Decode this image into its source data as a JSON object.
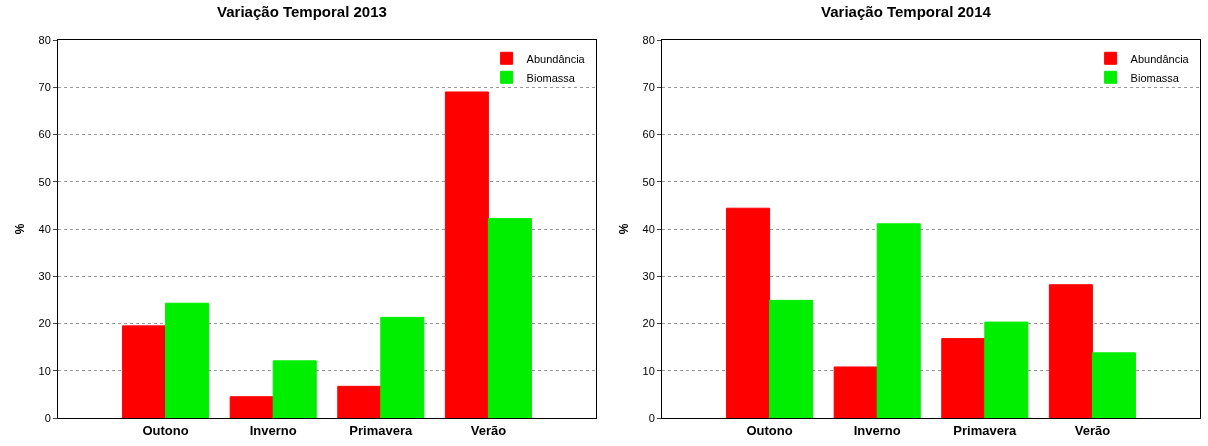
{
  "chart_data": [
    {
      "type": "bar",
      "title": "Variação Temporal 2013",
      "ylabel": "%",
      "categories": [
        "Outono",
        "Inverno",
        "Primavera",
        "Verão"
      ],
      "series": [
        {
          "name": "Abundância",
          "color": "#ff0000",
          "values": [
            19.5,
            4.5,
            6.7,
            69.0
          ]
        },
        {
          "name": "Biomassa",
          "color": "#00ee00",
          "values": [
            24.3,
            12.1,
            21.3,
            42.2
          ]
        }
      ],
      "ylim": [
        0,
        80
      ],
      "yticks": [
        0,
        10,
        20,
        30,
        40,
        50,
        60,
        70,
        80
      ],
      "grid": "y",
      "legend": "top right"
    },
    {
      "type": "bar",
      "title": "Variação Temporal 2014",
      "ylabel": "%",
      "categories": [
        "Outono",
        "Inverno",
        "Primavera",
        "Verão"
      ],
      "series": [
        {
          "name": "Abundância",
          "color": "#ff0000",
          "values": [
            44.4,
            10.8,
            16.8,
            28.2
          ]
        },
        {
          "name": "Biomassa",
          "color": "#00ee00",
          "values": [
            24.9,
            41.1,
            20.3,
            13.8
          ]
        }
      ],
      "ylim": [
        0,
        80
      ],
      "yticks": [
        0,
        10,
        20,
        30,
        40,
        50,
        60,
        70,
        80
      ],
      "grid": "y",
      "legend": "top right"
    }
  ]
}
